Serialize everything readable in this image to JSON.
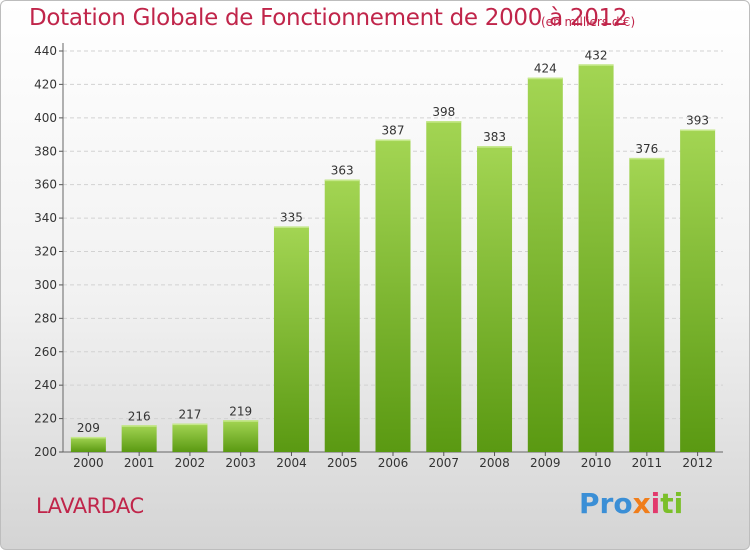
{
  "header": {
    "title": "Dotation Globale de Fonctionnement de 2000 à 2012",
    "unit": "(en milliers d'€)"
  },
  "footer": {
    "place": "LAVARDAC",
    "brand": [
      "Pro",
      "x",
      "i",
      "ti"
    ]
  },
  "colors": {
    "title": "#c0254a",
    "bar_light": "#9fd24f",
    "bar_dark": "#5b9a12",
    "grid": "#d0d0d0"
  },
  "chart_data": {
    "type": "bar",
    "title": "Dotation Globale de Fonctionnement de 2000 à 2012",
    "subtitle": "(en milliers d'€)",
    "categories": [
      "2000",
      "2001",
      "2002",
      "2003",
      "2004",
      "2005",
      "2006",
      "2007",
      "2008",
      "2009",
      "2010",
      "2011",
      "2012"
    ],
    "values": [
      209,
      216,
      217,
      219,
      335,
      363,
      387,
      398,
      383,
      424,
      432,
      376,
      393
    ],
    "value_labels": [
      "209",
      "216",
      "217",
      "219",
      "335",
      "363",
      "387",
      "398",
      "383",
      "424",
      "432",
      "376",
      "393"
    ],
    "y_ticks": [
      "200",
      "220",
      "240",
      "260",
      "280",
      "300",
      "320",
      "340",
      "360",
      "380",
      "400",
      "420",
      "440"
    ],
    "ylim": [
      200,
      440
    ],
    "grid": true,
    "xlabel": "",
    "ylabel": ""
  }
}
